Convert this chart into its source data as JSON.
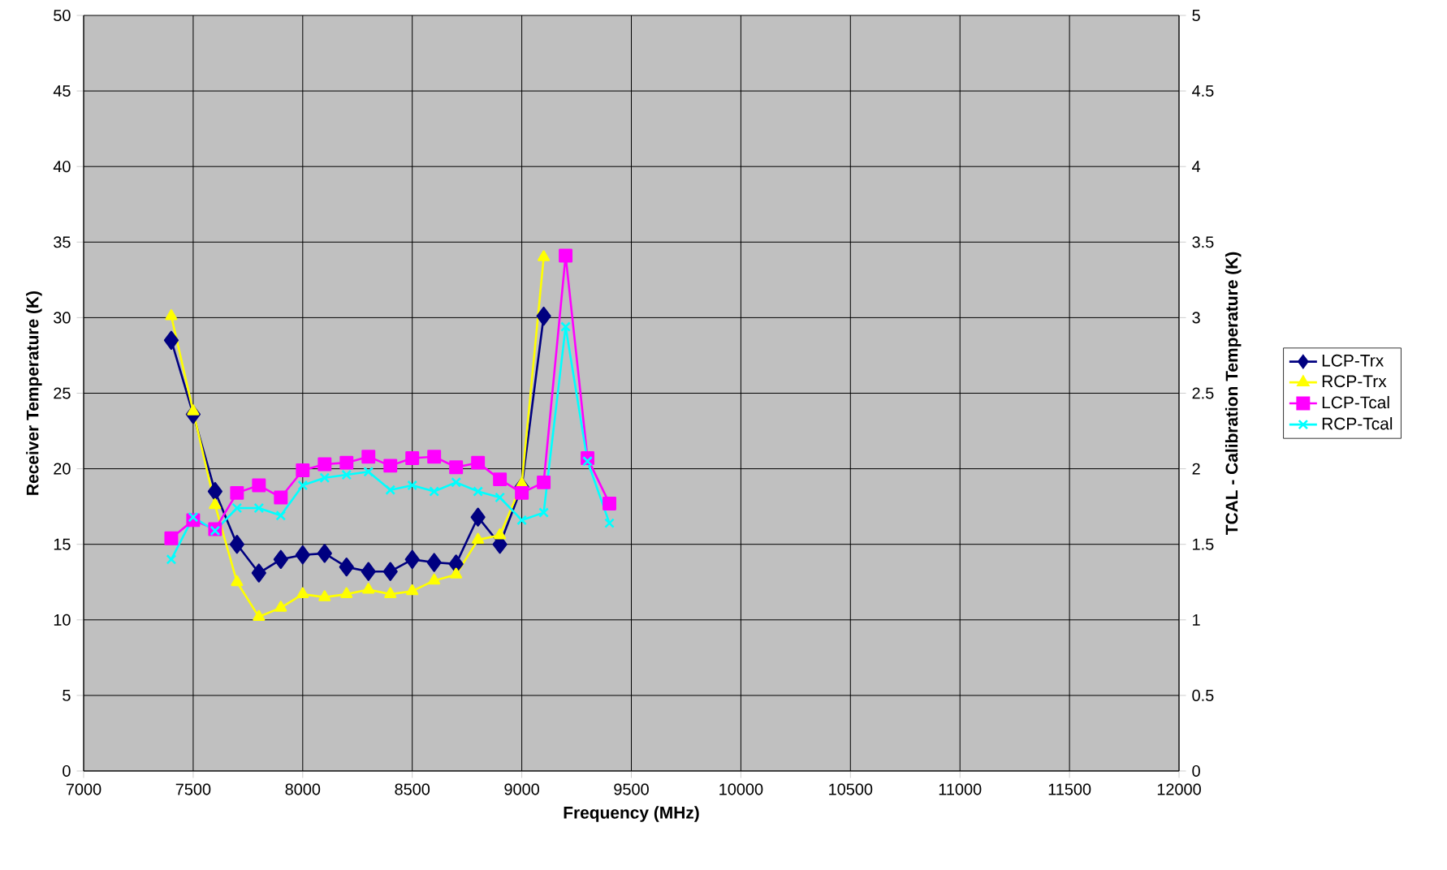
{
  "chart_data": {
    "type": "line",
    "xlabel": "Frequency (MHz)",
    "ylabel": "Receiver Temperature (K)",
    "y2label": "TCAL - Calibration Temperature (K)",
    "xlim": [
      7000,
      12000
    ],
    "xticks": [
      7000,
      7500,
      8000,
      8500,
      9000,
      9500,
      10000,
      10500,
      11000,
      11500,
      12000
    ],
    "ylim": [
      0,
      50
    ],
    "yticks": [
      0,
      5,
      10,
      15,
      20,
      25,
      30,
      35,
      40,
      45,
      50
    ],
    "y2lim": [
      0,
      5
    ],
    "y2ticks": [
      0,
      0.5,
      1,
      1.5,
      2,
      2.5,
      3,
      3.5,
      4,
      4.5,
      5
    ],
    "grid": true,
    "legend": "right",
    "series": [
      {
        "name": "LCP-Trx",
        "color": "#000080",
        "marker": "diamond",
        "x": [
          7400,
          7500,
          7600,
          7700,
          7800,
          7900,
          8000,
          8100,
          8200,
          8300,
          8400,
          8500,
          8600,
          8700,
          8800,
          8900,
          9000,
          9100
        ],
        "values": [
          28.5,
          23.6,
          18.5,
          15.0,
          13.1,
          14.0,
          14.3,
          14.4,
          13.5,
          13.2,
          13.2,
          14.0,
          13.8,
          13.7,
          16.8,
          15.0,
          18.8,
          30.1
        ]
      },
      {
        "name": "RCP-Trx",
        "color": "#ffff00",
        "marker": "triangle",
        "x": [
          7400,
          7500,
          7600,
          7700,
          7800,
          7900,
          8000,
          8100,
          8200,
          8300,
          8400,
          8500,
          8600,
          8700,
          8800,
          8900,
          9000,
          9100
        ],
        "values": [
          30.1,
          23.8,
          17.6,
          12.5,
          10.2,
          10.8,
          11.7,
          11.5,
          11.7,
          12.0,
          11.7,
          11.9,
          12.6,
          13.0,
          15.3,
          15.6,
          19.0,
          34.0
        ]
      },
      {
        "name": "LCP-Tcal",
        "color": "#ff00ff",
        "marker": "square",
        "axis": "y2",
        "x": [
          7400,
          7500,
          7600,
          7700,
          7800,
          7900,
          8000,
          8100,
          8200,
          8300,
          8400,
          8500,
          8600,
          8700,
          8800,
          8900,
          9000,
          9100,
          9200,
          9300,
          9400
        ],
        "values": [
          1.54,
          1.66,
          1.6,
          1.84,
          1.89,
          1.81,
          1.99,
          2.03,
          2.04,
          2.08,
          2.02,
          2.07,
          2.08,
          2.01,
          2.04,
          1.93,
          1.84,
          1.91,
          3.41,
          2.07,
          1.77
        ]
      },
      {
        "name": "RCP-Tcal",
        "color": "#00ffff",
        "marker": "cross",
        "axis": "y2",
        "x": [
          7400,
          7500,
          7600,
          7700,
          7800,
          7900,
          8000,
          8100,
          8200,
          8300,
          8400,
          8500,
          8600,
          8700,
          8800,
          8900,
          9000,
          9100,
          9200,
          9300,
          9400
        ],
        "values": [
          1.4,
          1.68,
          1.59,
          1.74,
          1.74,
          1.69,
          1.89,
          1.94,
          1.96,
          1.98,
          1.86,
          1.89,
          1.85,
          1.91,
          1.85,
          1.81,
          1.66,
          1.71,
          2.94,
          2.05,
          1.64
        ]
      }
    ]
  }
}
